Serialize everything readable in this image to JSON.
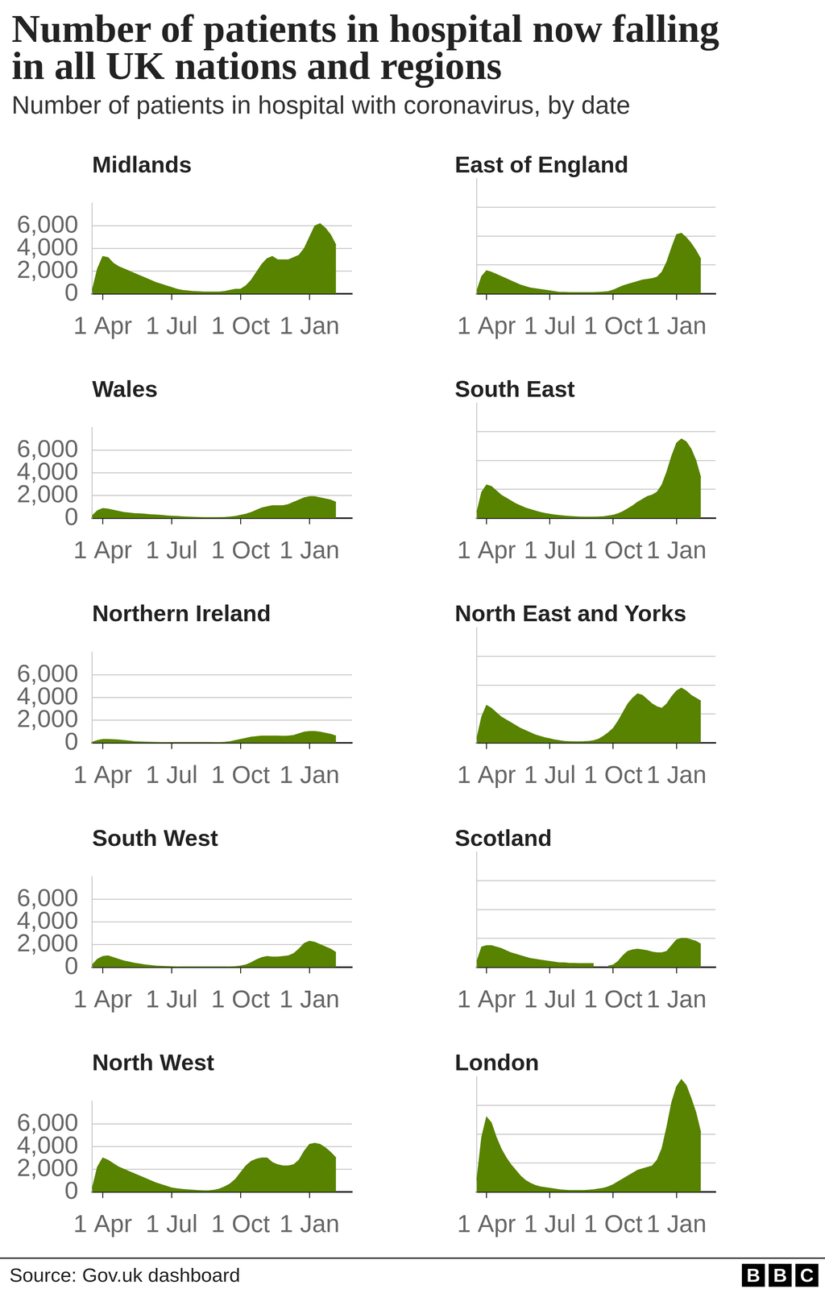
{
  "title": "Number of patients in hospital now falling in all UK nations and regions",
  "subtitle": "Number of patients in hospital with coronavirus, by date",
  "source": "Source: Gov.uk dashboard",
  "logo": "BBC",
  "chart_data": [
    {
      "type": "area",
      "title": "Midlands",
      "color": "#588300",
      "grid": true,
      "categories": [
        null,
        null,
        "1 Apr",
        null,
        null,
        null,
        null,
        null,
        null,
        null,
        null,
        null,
        null,
        null,
        null,
        "1 Jul",
        null,
        null,
        null,
        null,
        null,
        null,
        null,
        null,
        null,
        null,
        null,
        null,
        "1 Oct",
        null,
        null,
        null,
        null,
        null,
        null,
        null,
        null,
        null,
        null,
        null,
        null,
        "1 Jan",
        null,
        null,
        null,
        null,
        null,
        null,
        null,
        null
      ],
      "values": [
        300,
        2200,
        3300,
        3200,
        2700,
        2400,
        2200,
        2000,
        1800,
        1600,
        1400,
        1200,
        1000,
        850,
        700,
        550,
        400,
        300,
        250,
        200,
        180,
        150,
        150,
        150,
        150,
        200,
        300,
        400,
        400,
        700,
        1200,
        1900,
        2600,
        3100,
        3300,
        3000,
        3000,
        3000,
        3200,
        3400,
        4000,
        5000,
        6000,
        6200,
        5800,
        5200,
        4300,
        null,
        null,
        null
      ],
      "ylim": [
        0,
        8000
      ],
      "yticks": [
        0,
        {
          "value": 2000,
          "label": "2,000"
        },
        {
          "value": 4000,
          "label": "4,000"
        },
        {
          "value": 6000,
          "label": "6,000"
        }
      ]
    },
    {
      "type": "area",
      "title": "East of England",
      "color": "#588300",
      "grid": true,
      "tick_labels": "x",
      "categories": [
        null,
        null,
        "1 Apr",
        null,
        null,
        null,
        null,
        null,
        null,
        null,
        null,
        null,
        null,
        null,
        null,
        "1 Jul",
        null,
        null,
        null,
        null,
        null,
        null,
        null,
        null,
        null,
        null,
        null,
        null,
        "1 Oct",
        null,
        null,
        null,
        null,
        null,
        null,
        null,
        null,
        null,
        null,
        null,
        null,
        "1 Jan",
        null,
        null,
        null,
        null,
        null,
        null,
        null,
        null
      ],
      "values": [
        200,
        1200,
        1600,
        1500,
        1350,
        1200,
        1050,
        900,
        750,
        600,
        500,
        400,
        350,
        300,
        250,
        200,
        150,
        100,
        100,
        80,
        80,
        80,
        80,
        80,
        80,
        100,
        120,
        150,
        250,
        400,
        550,
        650,
        750,
        850,
        950,
        1000,
        1050,
        1150,
        1500,
        2200,
        3200,
        4100,
        4200,
        3900,
        3500,
        3000,
        2400,
        null,
        null,
        null
      ],
      "ylim": [
        0,
        8000
      ],
      "yticks": [
        0,
        {
          "value": 2000,
          "label": "2,000"
        },
        {
          "value": 4000,
          "label": "4,000"
        },
        {
          "value": 6000,
          "label": "6,000"
        }
      ]
    },
    {
      "type": "area",
      "title": "Wales",
      "color": "#588300",
      "grid": true,
      "categories": [
        null,
        null,
        "1 Apr",
        null,
        null,
        null,
        null,
        null,
        null,
        null,
        null,
        null,
        null,
        null,
        null,
        "1 Jul",
        null,
        null,
        null,
        null,
        null,
        null,
        null,
        null,
        null,
        null,
        null,
        null,
        "1 Oct",
        null,
        null,
        null,
        null,
        null,
        null,
        null,
        null,
        null,
        null,
        null,
        null,
        "1 Jan",
        null,
        null,
        null,
        null,
        null,
        null,
        null,
        null
      ],
      "values": [
        200,
        650,
        850,
        800,
        700,
        600,
        500,
        450,
        400,
        380,
        350,
        300,
        280,
        250,
        200,
        170,
        150,
        120,
        100,
        80,
        60,
        50,
        50,
        50,
        50,
        60,
        100,
        150,
        250,
        350,
        500,
        700,
        900,
        1000,
        1100,
        1100,
        1100,
        1200,
        1400,
        1600,
        1800,
        1900,
        1900,
        1800,
        1700,
        1600,
        1400,
        null,
        null,
        null
      ],
      "ylim": [
        0,
        8000
      ],
      "yticks": [
        0,
        {
          "value": 2000,
          "label": "2,000"
        },
        {
          "value": 4000,
          "label": "4,000"
        },
        {
          "value": 6000,
          "label": "6,000"
        }
      ]
    },
    {
      "type": "area",
      "title": "South East",
      "color": "#588300",
      "grid": true,
      "tick_labels": "x",
      "categories": [
        null,
        null,
        "1 Apr",
        null,
        null,
        null,
        null,
        null,
        null,
        null,
        null,
        null,
        null,
        null,
        null,
        "1 Jul",
        null,
        null,
        null,
        null,
        null,
        null,
        null,
        null,
        null,
        null,
        null,
        null,
        "1 Oct",
        null,
        null,
        null,
        null,
        null,
        null,
        null,
        null,
        null,
        null,
        null,
        null,
        "1 Jan",
        null,
        null,
        null,
        null,
        null,
        null,
        null,
        null
      ],
      "values": [
        400,
        1800,
        2300,
        2200,
        1900,
        1600,
        1400,
        1200,
        1000,
        850,
        700,
        600,
        500,
        400,
        330,
        270,
        220,
        180,
        150,
        120,
        100,
        80,
        70,
        70,
        70,
        80,
        100,
        150,
        200,
        300,
        450,
        650,
        850,
        1100,
        1300,
        1500,
        1600,
        1800,
        2300,
        3200,
        4300,
        5200,
        5500,
        5300,
        4800,
        4000,
        2800,
        null,
        null,
        null
      ],
      "ylim": [
        0,
        8000
      ],
      "yticks": [
        0,
        {
          "value": 2000,
          "label": "2,000"
        },
        {
          "value": 4000,
          "label": "4,000"
        },
        {
          "value": 6000,
          "label": "6,000"
        }
      ]
    },
    {
      "type": "area",
      "title": "Northern Ireland",
      "color": "#588300",
      "grid": true,
      "categories": [
        null,
        null,
        "1 Apr",
        null,
        null,
        null,
        null,
        null,
        null,
        null,
        null,
        null,
        null,
        null,
        null,
        "1 Jul",
        null,
        null,
        null,
        null,
        null,
        null,
        null,
        null,
        null,
        null,
        null,
        null,
        "1 Oct",
        null,
        null,
        null,
        null,
        null,
        null,
        null,
        null,
        null,
        null,
        null,
        null,
        "1 Jan",
        null,
        null,
        null,
        null,
        null,
        null,
        null,
        null
      ],
      "values": [
        50,
        200,
        300,
        300,
        280,
        250,
        200,
        150,
        100,
        80,
        60,
        50,
        40,
        30,
        20,
        15,
        10,
        10,
        10,
        10,
        10,
        10,
        10,
        20,
        30,
        50,
        100,
        200,
        300,
        400,
        500,
        550,
        600,
        600,
        600,
        600,
        580,
        600,
        650,
        800,
        950,
        1000,
        1000,
        950,
        850,
        750,
        600,
        null,
        null,
        null
      ],
      "ylim": [
        0,
        8000
      ],
      "yticks": [
        0,
        {
          "value": 2000,
          "label": "2,000"
        },
        {
          "value": 4000,
          "label": "4,000"
        },
        {
          "value": 6000,
          "label": "6,000"
        }
      ]
    },
    {
      "type": "area",
      "title": "North East and Yorks",
      "color": "#588300",
      "grid": true,
      "tick_labels": "x",
      "categories": [
        null,
        null,
        "1 Apr",
        null,
        null,
        null,
        null,
        null,
        null,
        null,
        null,
        null,
        null,
        null,
        null,
        "1 Jul",
        null,
        null,
        null,
        null,
        null,
        null,
        null,
        null,
        null,
        null,
        null,
        null,
        "1 Oct",
        null,
        null,
        null,
        null,
        null,
        null,
        null,
        null,
        null,
        null,
        null,
        null,
        "1 Jan",
        null,
        null,
        null,
        null,
        null,
        null,
        null,
        null
      ],
      "values": [
        300,
        1800,
        2600,
        2400,
        2100,
        1800,
        1600,
        1400,
        1200,
        1000,
        850,
        700,
        550,
        450,
        350,
        280,
        200,
        150,
        100,
        80,
        70,
        70,
        80,
        100,
        150,
        250,
        450,
        700,
        1000,
        1500,
        2100,
        2700,
        3100,
        3400,
        3300,
        3000,
        2700,
        2500,
        2400,
        2700,
        3200,
        3600,
        3800,
        3600,
        3300,
        3100,
        2900,
        null,
        null,
        null
      ],
      "ylim": [
        0,
        8000
      ],
      "yticks": [
        0,
        {
          "value": 2000,
          "label": "2,000"
        },
        {
          "value": 4000,
          "label": "4,000"
        },
        {
          "value": 6000,
          "label": "6,000"
        }
      ]
    },
    {
      "type": "area",
      "title": "South West",
      "color": "#588300",
      "grid": true,
      "categories": [
        null,
        null,
        "1 Apr",
        null,
        null,
        null,
        null,
        null,
        null,
        null,
        null,
        null,
        null,
        null,
        null,
        "1 Jul",
        null,
        null,
        null,
        null,
        null,
        null,
        null,
        null,
        null,
        null,
        null,
        null,
        "1 Oct",
        null,
        null,
        null,
        null,
        null,
        null,
        null,
        null,
        null,
        null,
        null,
        null,
        "1 Jan",
        null,
        null,
        null,
        null,
        null,
        null,
        null,
        null
      ],
      "values": [
        200,
        700,
        950,
        1000,
        850,
        700,
        550,
        450,
        350,
        280,
        200,
        150,
        100,
        80,
        60,
        40,
        30,
        20,
        20,
        20,
        20,
        20,
        20,
        20,
        20,
        20,
        30,
        50,
        100,
        200,
        400,
        650,
        850,
        950,
        900,
        900,
        950,
        1000,
        1200,
        1600,
        2100,
        2300,
        2200,
        2000,
        1800,
        1600,
        1300,
        null,
        null,
        null
      ],
      "ylim": [
        0,
        8000
      ],
      "yticks": [
        0,
        {
          "value": 2000,
          "label": "2,000"
        },
        {
          "value": 4000,
          "label": "4,000"
        },
        {
          "value": 6000,
          "label": "6,000"
        }
      ]
    },
    {
      "type": "area",
      "title": "Scotland",
      "color": "#588300",
      "grid": true,
      "tick_labels": "x",
      "categories": [
        null,
        null,
        "1 Apr",
        null,
        null,
        null,
        null,
        null,
        null,
        null,
        null,
        null,
        null,
        null,
        null,
        "1 Jul",
        null,
        null,
        null,
        null,
        null,
        null,
        null,
        null,
        null,
        null,
        null,
        null,
        "1 Oct",
        null,
        null,
        null,
        null,
        null,
        null,
        null,
        null,
        null,
        null,
        null,
        null,
        "1 Jan",
        null,
        null,
        null,
        null,
        null,
        null,
        null,
        null
      ],
      "values": [
        400,
        1400,
        1500,
        1500,
        1400,
        1300,
        1150,
        1000,
        900,
        800,
        700,
        600,
        550,
        500,
        450,
        400,
        350,
        300,
        300,
        270,
        260,
        250,
        250,
        250,
        250,
        null,
        null,
        80,
        150,
        400,
        800,
        1100,
        1200,
        1250,
        1200,
        1150,
        1050,
        1000,
        1000,
        1100,
        1500,
        1900,
        2000,
        2000,
        1900,
        1800,
        1600,
        null,
        null,
        null
      ],
      "ylim": [
        0,
        8000
      ],
      "yticks": [
        0,
        {
          "value": 2000,
          "label": "2,000"
        },
        {
          "value": 4000,
          "label": "4,000"
        },
        {
          "value": 6000,
          "label": "6,000"
        }
      ]
    },
    {
      "type": "area",
      "title": "North West",
      "color": "#588300",
      "grid": true,
      "categories": [
        null,
        null,
        "1 Apr",
        null,
        null,
        null,
        null,
        null,
        null,
        null,
        null,
        null,
        null,
        null,
        null,
        "1 Jul",
        null,
        null,
        null,
        null,
        null,
        null,
        null,
        null,
        null,
        null,
        null,
        null,
        "1 Oct",
        null,
        null,
        null,
        null,
        null,
        null,
        null,
        null,
        null,
        null,
        null,
        null,
        "1 Jan",
        null,
        null,
        null,
        null,
        null,
        null,
        null,
        null
      ],
      "values": [
        300,
        2200,
        3000,
        2800,
        2500,
        2200,
        2000,
        1800,
        1600,
        1400,
        1200,
        1000,
        800,
        650,
        500,
        350,
        280,
        220,
        180,
        150,
        120,
        100,
        100,
        150,
        250,
        450,
        700,
        1100,
        1700,
        2300,
        2700,
        2900,
        3000,
        3000,
        2600,
        2400,
        2300,
        2300,
        2400,
        2800,
        3600,
        4200,
        4300,
        4200,
        3900,
        3500,
        3000,
        null,
        null,
        null
      ],
      "ylim": [
        0,
        8000
      ],
      "yticks": [
        0,
        {
          "value": 2000,
          "label": "2,000"
        },
        {
          "value": 4000,
          "label": "4,000"
        },
        {
          "value": 6000,
          "label": "6,000"
        }
      ]
    },
    {
      "type": "area",
      "title": "London",
      "color": "#588300",
      "grid": true,
      "tick_labels": "x",
      "categories": [
        null,
        null,
        "1 Apr",
        null,
        null,
        null,
        null,
        null,
        null,
        null,
        null,
        null,
        null,
        null,
        null,
        "1 Jul",
        null,
        null,
        null,
        null,
        null,
        null,
        null,
        null,
        null,
        null,
        null,
        null,
        "1 Oct",
        null,
        null,
        null,
        null,
        null,
        null,
        null,
        null,
        null,
        null,
        null,
        null,
        "1 Jan",
        null,
        null,
        null,
        null,
        null,
        null,
        null,
        null
      ],
      "values": [
        800,
        3800,
        5200,
        4800,
        3800,
        3000,
        2400,
        1900,
        1500,
        1100,
        800,
        600,
        450,
        350,
        300,
        250,
        200,
        150,
        120,
        100,
        100,
        100,
        100,
        120,
        150,
        200,
        250,
        350,
        500,
        700,
        900,
        1100,
        1300,
        1500,
        1600,
        1700,
        1800,
        2200,
        3000,
        4500,
        6200,
        7300,
        7800,
        7400,
        6500,
        5500,
        4100,
        null,
        null,
        null
      ],
      "ylim": [
        0,
        8000
      ],
      "yticks": [
        0,
        {
          "value": 2000,
          "label": "2,000"
        },
        {
          "value": 4000,
          "label": "4,000"
        },
        {
          "value": 6000,
          "label": "6,000"
        }
      ]
    }
  ]
}
